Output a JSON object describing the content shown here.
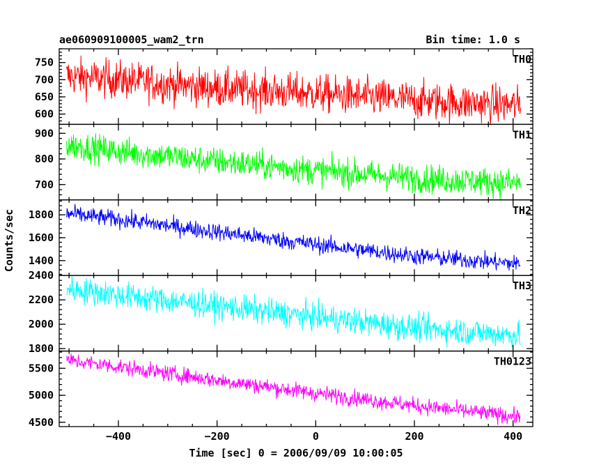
{
  "header": {
    "title": "ae060909100005_wam2_trn",
    "bin_time": "Bin time: 1.0 s"
  },
  "chart_data": {
    "type": "line",
    "xlabel": "Time [sec] 0 = 2006/09/09 10:00:05",
    "ylabel": "Counts/sec",
    "xlim": [
      -520,
      440
    ],
    "xticks": [
      -400,
      -200,
      0,
      200,
      400
    ],
    "x_start": -505,
    "x_end": 415,
    "bin_time_sec": 1.0,
    "series": [
      {
        "name": "TH0",
        "color": "#ff0000",
        "ylim": [
          570,
          790
        ],
        "yticks": [
          600,
          650,
          700,
          750
        ],
        "trend": [
          [
            -505,
            710
          ],
          [
            -400,
            700
          ],
          [
            -200,
            675
          ],
          [
            0,
            660
          ],
          [
            200,
            640
          ],
          [
            415,
            625
          ]
        ],
        "noise": 28
      },
      {
        "name": "TH1",
        "color": "#00ff00",
        "ylim": [
          640,
          935
        ],
        "yticks": [
          700,
          800,
          900
        ],
        "trend": [
          [
            -505,
            855
          ],
          [
            -400,
            830
          ],
          [
            -200,
            790
          ],
          [
            0,
            755
          ],
          [
            200,
            725
          ],
          [
            415,
            705
          ]
        ],
        "noise": 28
      },
      {
        "name": "TH2",
        "color": "#0000ff",
        "ylim": [
          1270,
          1930
        ],
        "yticks": [
          1400,
          1600,
          1800
        ],
        "trend": [
          [
            -505,
            1810
          ],
          [
            -400,
            1760
          ],
          [
            -200,
            1650
          ],
          [
            0,
            1540
          ],
          [
            200,
            1440
          ],
          [
            415,
            1370
          ]
        ],
        "noise": 38
      },
      {
        "name": "TH3",
        "color": "#00ffff",
        "ylim": [
          1780,
          2400
        ],
        "yticks": [
          1800,
          2000,
          2200,
          2400
        ],
        "trend": [
          [
            -505,
            2290
          ],
          [
            -400,
            2240
          ],
          [
            -200,
            2150
          ],
          [
            0,
            2060
          ],
          [
            200,
            1970
          ],
          [
            415,
            1910
          ]
        ],
        "noise": 55
      },
      {
        "name": "TH0123",
        "color": "#ff00ff",
        "ylim": [
          4420,
          5820
        ],
        "yticks": [
          4500,
          5000,
          5500
        ],
        "trend": [
          [
            -505,
            5650
          ],
          [
            -400,
            5530
          ],
          [
            -200,
            5280
          ],
          [
            0,
            5040
          ],
          [
            200,
            4810
          ],
          [
            415,
            4600
          ]
        ],
        "noise": 75
      }
    ]
  }
}
